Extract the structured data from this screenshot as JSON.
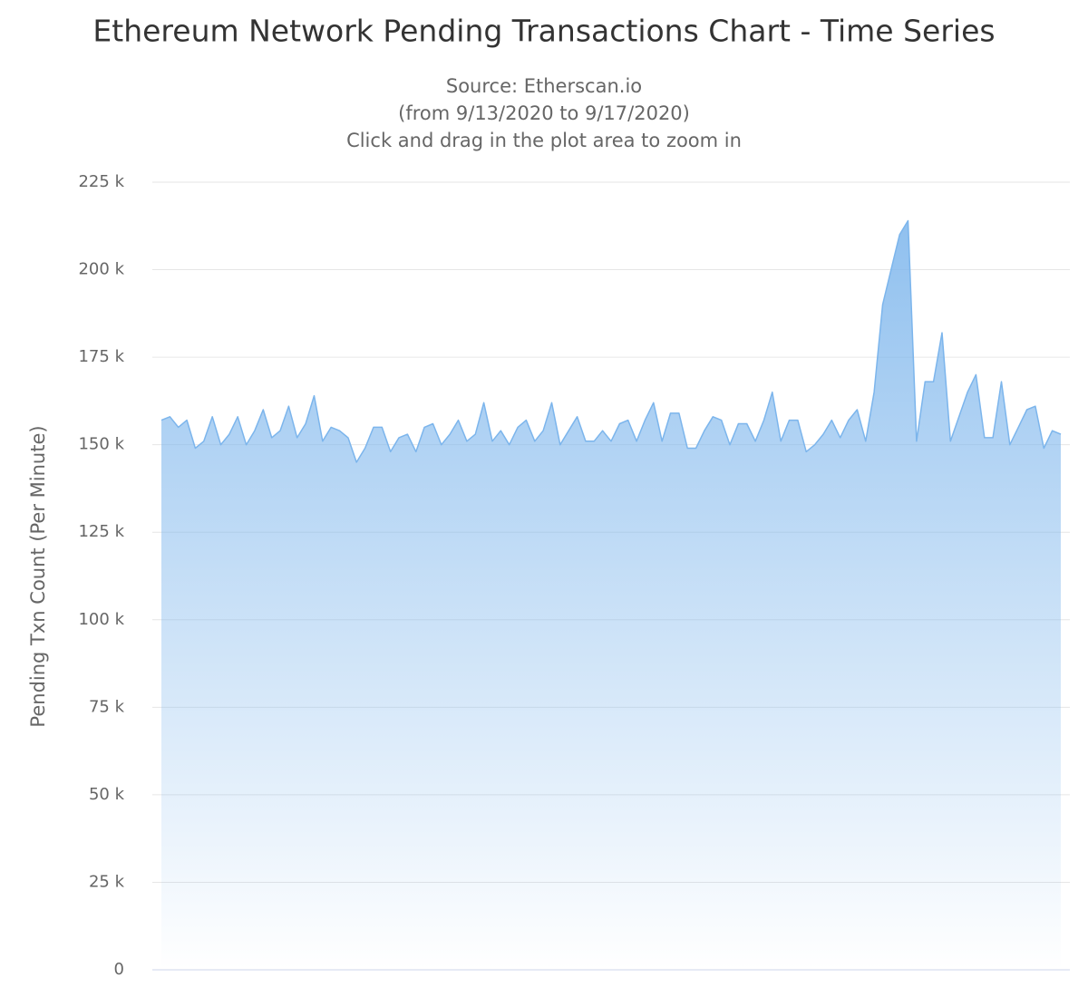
{
  "chart_data": {
    "type": "area",
    "title": "Ethereum Network Pending Transactions Chart - Time Series",
    "subtitle": [
      "Source: Etherscan.io",
      "(from 9/13/2020 to 9/17/2020)",
      "Click and drag in the plot area to zoom in"
    ],
    "y_axis_label": "Pending Txn Count (Per Minute)",
    "color": "#7cb5ec",
    "grid": true,
    "ylim": [
      0,
      225000
    ],
    "yticks": [
      0,
      {
        "value": 25000,
        "label": "25 k"
      },
      {
        "value": 50000,
        "label": "50 k"
      },
      {
        "value": 75000,
        "label": "75 k"
      },
      {
        "value": 100000,
        "label": "100 k"
      },
      {
        "value": 125000,
        "label": "125 k"
      },
      {
        "value": 150000,
        "label": "150 k"
      },
      {
        "value": 175000,
        "label": "175 k"
      },
      {
        "value": 200000,
        "label": "200 k"
      },
      {
        "value": 225000,
        "label": "225 k"
      }
    ],
    "values": [
      157000,
      158000,
      155000,
      157000,
      149000,
      151000,
      158000,
      150000,
      153000,
      158000,
      150000,
      154000,
      160000,
      152000,
      154000,
      161000,
      152000,
      156000,
      164000,
      151000,
      155000,
      154000,
      152000,
      145000,
      149000,
      155000,
      155000,
      148000,
      152000,
      153000,
      148000,
      155000,
      156000,
      150000,
      153000,
      157000,
      151000,
      153000,
      162000,
      151000,
      154000,
      150000,
      155000,
      157000,
      151000,
      154000,
      162000,
      150000,
      154000,
      158000,
      151000,
      151000,
      154000,
      151000,
      156000,
      157000,
      151000,
      157000,
      162000,
      151000,
      159000,
      159000,
      149000,
      149000,
      154000,
      158000,
      157000,
      150000,
      156000,
      156000,
      151000,
      157000,
      165000,
      151000,
      157000,
      157000,
      148000,
      150000,
      153000,
      157000,
      152000,
      157000,
      160000,
      151000,
      165000,
      190000,
      200000,
      210000,
      214000,
      151000,
      168000,
      168000,
      182000,
      151000,
      158000,
      165000,
      170000,
      152000,
      152000,
      168000,
      150000,
      155000,
      160000,
      161000,
      149000,
      154000,
      153000
    ]
  }
}
